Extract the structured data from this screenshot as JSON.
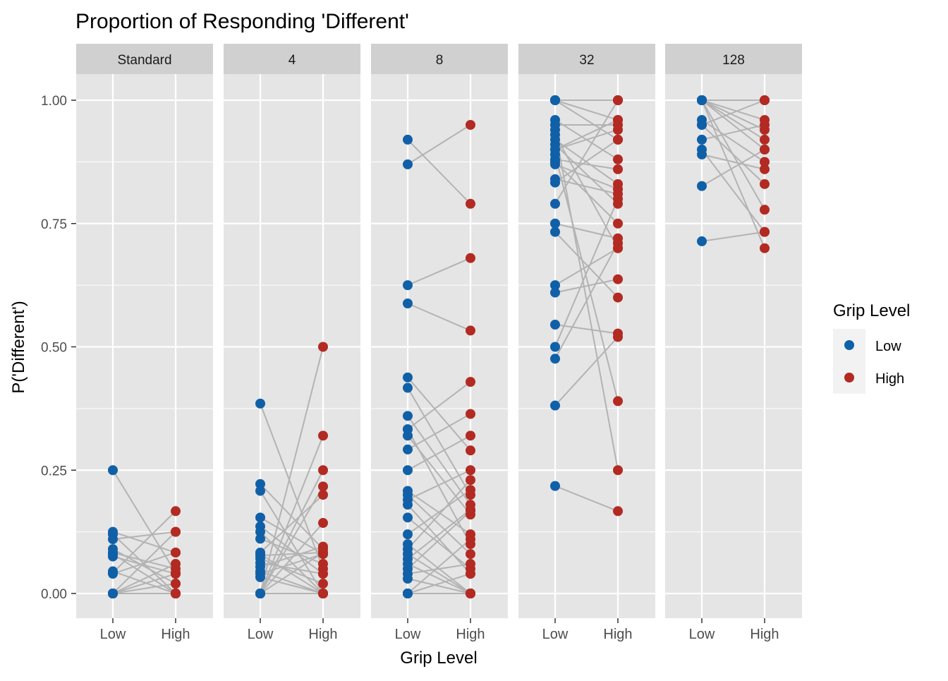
{
  "title": "Proportion of Responding 'Different'",
  "xlabel": "Grip Level",
  "ylabel": "P('Different')",
  "legend": {
    "title": "Grip Level",
    "position": "right",
    "items": [
      {
        "label": "Low",
        "color": "#1060A8"
      },
      {
        "label": "High",
        "color": "#B22A22"
      }
    ]
  },
  "colors": {
    "low": "#1060A8",
    "high": "#B22A22",
    "line": "#B3B3B3",
    "panel_bg": "#E5E5E5",
    "strip_bg": "#D0D0D0",
    "grid": "#FFFFFF"
  },
  "chart_data": {
    "type": "scatter",
    "subtype": "faceted paired dot plot with connecting lines",
    "facets": [
      "Standard",
      "4",
      "8",
      "32",
      "128"
    ],
    "x_categories": [
      "Low",
      "High"
    ],
    "y_ticks": [
      "0.00",
      "0.25",
      "0.50",
      "0.75",
      "1.00"
    ],
    "ylim": [
      -0.05,
      1.05
    ],
    "grid": true,
    "panels": [
      {
        "facet": "Standard",
        "pairs": [
          [
            0.25,
            0.042
          ],
          [
            0.125,
            0.083
          ],
          [
            0.12,
            0.0
          ],
          [
            0.11,
            0.125
          ],
          [
            0.09,
            0.02
          ],
          [
            0.083,
            0.05
          ],
          [
            0.08,
            0.0
          ],
          [
            0.075,
            0.04
          ],
          [
            0.042,
            0.167
          ],
          [
            0.04,
            0.083
          ],
          [
            0.045,
            0.0
          ],
          [
            0.0,
            0.125
          ],
          [
            0.0,
            0.0
          ],
          [
            0.0,
            0.0
          ],
          [
            0.0,
            0.0
          ],
          [
            0.0,
            0.06
          ],
          [
            0.0,
            0.04
          ],
          [
            0.0,
            0.02
          ],
          [
            0.0,
            0.0
          ],
          [
            0.0,
            0.0
          ]
        ]
      },
      {
        "facet": "4",
        "pairs": [
          [
            0.385,
            0.05
          ],
          [
            0.222,
            0.09
          ],
          [
            0.208,
            0.0
          ],
          [
            0.154,
            0.08
          ],
          [
            0.136,
            0.04
          ],
          [
            0.125,
            0.0
          ],
          [
            0.111,
            0.06
          ],
          [
            0.083,
            0.2
          ],
          [
            0.08,
            0.0
          ],
          [
            0.077,
            0.083
          ],
          [
            0.071,
            0.02
          ],
          [
            0.062,
            0.04
          ],
          [
            0.054,
            0.095
          ],
          [
            0.045,
            0.0
          ],
          [
            0.04,
            0.08
          ],
          [
            0.033,
            0.0
          ],
          [
            0.0,
            0.5
          ],
          [
            0.0,
            0.32
          ],
          [
            0.0,
            0.25
          ],
          [
            0.0,
            0.217
          ],
          [
            0.0,
            0.143
          ],
          [
            0.0,
            0.0
          ],
          [
            0.0,
            0.0
          ],
          [
            0.0,
            0.0
          ],
          [
            0.0,
            0.083
          ]
        ]
      },
      {
        "facet": "8",
        "pairs": [
          [
            0.92,
            0.79
          ],
          [
            0.87,
            0.95
          ],
          [
            0.625,
            0.68
          ],
          [
            0.588,
            0.533
          ],
          [
            0.438,
            0.29
          ],
          [
            0.417,
            0.2
          ],
          [
            0.36,
            0.18
          ],
          [
            0.333,
            0.1
          ],
          [
            0.333,
            0.429
          ],
          [
            0.32,
            0.16
          ],
          [
            0.292,
            0.364
          ],
          [
            0.25,
            0.32
          ],
          [
            0.208,
            0.12
          ],
          [
            0.2,
            0.08
          ],
          [
            0.19,
            0.25
          ],
          [
            0.18,
            0.04
          ],
          [
            0.154,
            0.05
          ],
          [
            0.12,
            0.21
          ],
          [
            0.1,
            0.0
          ],
          [
            0.09,
            0.23
          ],
          [
            0.08,
            0.0
          ],
          [
            0.07,
            0.17
          ],
          [
            0.06,
            0.0
          ],
          [
            0.05,
            0.167
          ],
          [
            0.04,
            0.06
          ],
          [
            0.03,
            0.0
          ],
          [
            0.0,
            0.11
          ],
          [
            0.0,
            0.0
          ],
          [
            0.0,
            0.04
          ],
          [
            0.0,
            0.0
          ]
        ]
      },
      {
        "facet": "32",
        "pairs": [
          [
            1.0,
            1.0
          ],
          [
            1.0,
            0.96
          ],
          [
            1.0,
            0.92
          ],
          [
            1.0,
            1.0
          ],
          [
            0.96,
            0.88
          ],
          [
            0.95,
            0.95
          ],
          [
            0.93,
            0.7
          ],
          [
            0.92,
            0.83
          ],
          [
            0.91,
            0.79
          ],
          [
            0.9,
            0.96
          ],
          [
            0.88,
            0.86
          ],
          [
            0.875,
            0.75
          ],
          [
            0.87,
            0.82
          ],
          [
            0.84,
            0.81
          ],
          [
            0.833,
            0.92
          ],
          [
            0.79,
            1.0
          ],
          [
            0.75,
            0.72
          ],
          [
            0.733,
            0.6
          ],
          [
            0.625,
            0.7
          ],
          [
            0.61,
            0.637
          ],
          [
            0.545,
            0.527
          ],
          [
            0.5,
            0.8
          ],
          [
            0.476,
            0.71
          ],
          [
            0.381,
            0.52
          ],
          [
            0.218,
            0.167
          ],
          [
            0.89,
            0.39
          ],
          [
            0.94,
            0.25
          ],
          [
            0.9,
            0.94
          ]
        ]
      },
      {
        "facet": "128",
        "pairs": [
          [
            1.0,
            1.0
          ],
          [
            1.0,
            0.96
          ],
          [
            1.0,
            0.94
          ],
          [
            1.0,
            0.92
          ],
          [
            1.0,
            0.9
          ],
          [
            1.0,
            0.7
          ],
          [
            0.96,
            0.875
          ],
          [
            0.95,
            0.83
          ],
          [
            0.92,
            0.95
          ],
          [
            0.9,
            0.733
          ],
          [
            0.89,
            0.86
          ],
          [
            0.826,
            0.9
          ],
          [
            0.714,
            0.733
          ],
          [
            1.0,
            0.778
          ],
          [
            0.95,
            1.0
          ]
        ]
      }
    ]
  }
}
